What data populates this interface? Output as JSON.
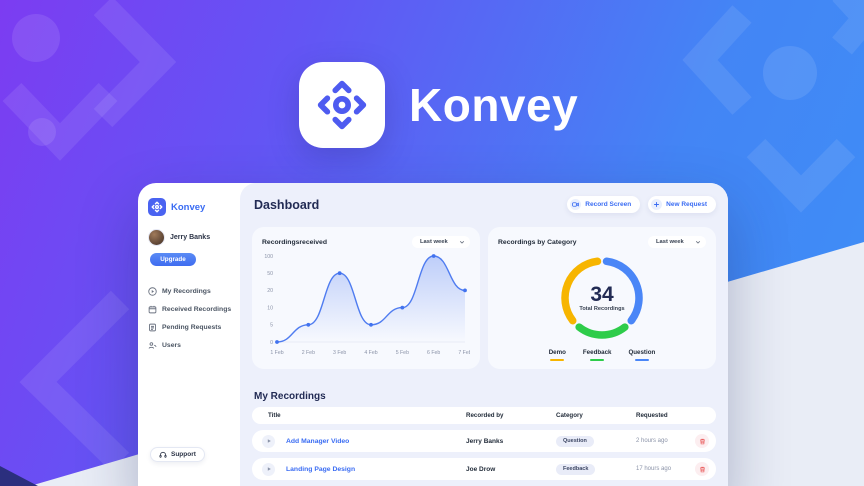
{
  "brand": {
    "name": "Konvey",
    "accent": "#3a6cf3",
    "logo_icon": "konvey-compass-icon"
  },
  "header": {
    "title": "Dashboard",
    "record_screen_label": "Record Screen",
    "new_request_label": "New Request"
  },
  "sidebar": {
    "brand": "Konvey",
    "user": {
      "name": "Jerry Banks"
    },
    "upgrade_label": "Upgrade",
    "items": [
      {
        "label": "My Recordings",
        "icon": "play-icon"
      },
      {
        "label": "Received Recordings",
        "icon": "inbox-calendar-icon"
      },
      {
        "label": "Pending Requests",
        "icon": "request-doc-icon"
      },
      {
        "label": "Users",
        "icon": "users-icon"
      }
    ],
    "support_label": "Support"
  },
  "chart_data": [
    {
      "type": "line",
      "title": "Recordingsreceived",
      "range_selector": "Last week",
      "x": [
        "1 Feb",
        "2 Feb",
        "3 Feb",
        "4 Feb",
        "5 Feb",
        "6 Feb",
        "7 Feb"
      ],
      "y_ticks": [
        0,
        5,
        10,
        20,
        50,
        100
      ],
      "values": [
        0,
        5,
        50,
        5,
        10,
        100,
        20
      ],
      "line_color": "#4f7cf0",
      "dot_color": "#4273ef",
      "area_fill": "rgba(104,141,242,0.40)",
      "ylabel": "",
      "xlabel": "",
      "note": "y axis uses evenly spaced ordinal ticks 0,5,10,20,50,100"
    },
    {
      "type": "donut",
      "title": "Recordings by Category",
      "range_selector": "Last week",
      "center_value": "34",
      "center_label": "Total Recordings",
      "segments": [
        {
          "label": "Demo",
          "color": "#f7b500",
          "percent": 38
        },
        {
          "label": "Feedback",
          "color": "#2ecc4a",
          "percent": 24
        },
        {
          "label": "Question",
          "color": "#4a86f7",
          "percent": 38
        }
      ],
      "legend_position": "bottom"
    }
  ],
  "table": {
    "title": "My Recordings",
    "columns": [
      "Title",
      "Recorded by",
      "Category",
      "Requested"
    ],
    "rows": [
      {
        "title": "Add Manager Video",
        "recorded_by": "Jerry Banks",
        "category": "Question",
        "requested": "2 hours ago"
      },
      {
        "title": "Landing Page Design",
        "recorded_by": "Joe Drow",
        "category": "Feedback",
        "requested": "17 hours ago"
      }
    ],
    "delete_color": "#e95f5f"
  }
}
